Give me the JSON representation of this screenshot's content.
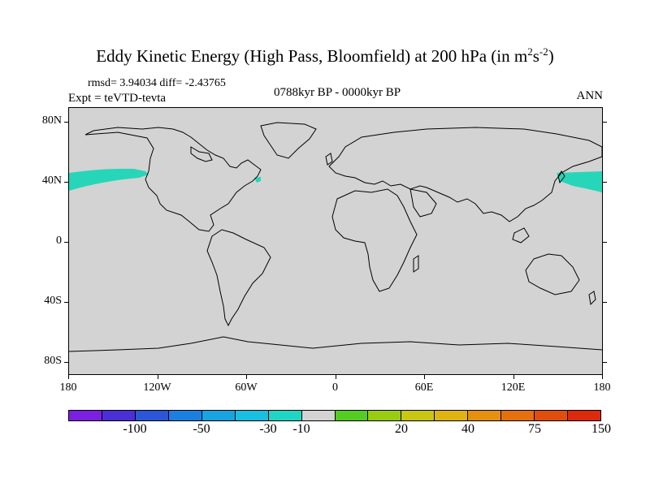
{
  "title": {
    "main": "Eddy Kinetic Energy (High Pass, Bloomfield) at 200 hPa (in m",
    "sup1": "2",
    "s": "s",
    "sup2": "-2",
    "close": ")"
  },
  "stats": "rmsd= 3.94034 diff= -2.43765",
  "expt": "Expt = teVTD-tevta",
  "period": "0788kyr BP - 0000kyr BP",
  "season": "ANN",
  "lat_labels": [
    "80N",
    "40N",
    "0",
    "40S",
    "80S"
  ],
  "lon_labels": [
    "180",
    "120W",
    "60W",
    "0",
    "60E",
    "120E",
    "180"
  ],
  "colors": {
    "land_ocean": "#d3d3d3",
    "anomaly": "#27d6b8",
    "coast": "#000000",
    "bins": [
      "#7b1fe0",
      "#4b2fd6",
      "#2b56d8",
      "#1a7fe0",
      "#19a3e0",
      "#18bfe0",
      "#1fd6c4",
      "#d3d3d3",
      "#55cc22",
      "#99cc11",
      "#c8c812",
      "#e0b410",
      "#e69010",
      "#e4710e",
      "#e04e0e",
      "#dc2a0c"
    ]
  },
  "colorbar_labels": [
    {
      "text": "-100",
      "bin": 2
    },
    {
      "text": "-50",
      "bin": 4
    },
    {
      "text": "-30",
      "bin": 6
    },
    {
      "text": "-10",
      "bin": 8
    },
    {
      "text": "20",
      "bin": 10
    },
    {
      "text": "40",
      "bin": 12
    },
    {
      "text": "75",
      "bin": 14
    },
    {
      "text": "150",
      "bin": 16
    }
  ]
}
